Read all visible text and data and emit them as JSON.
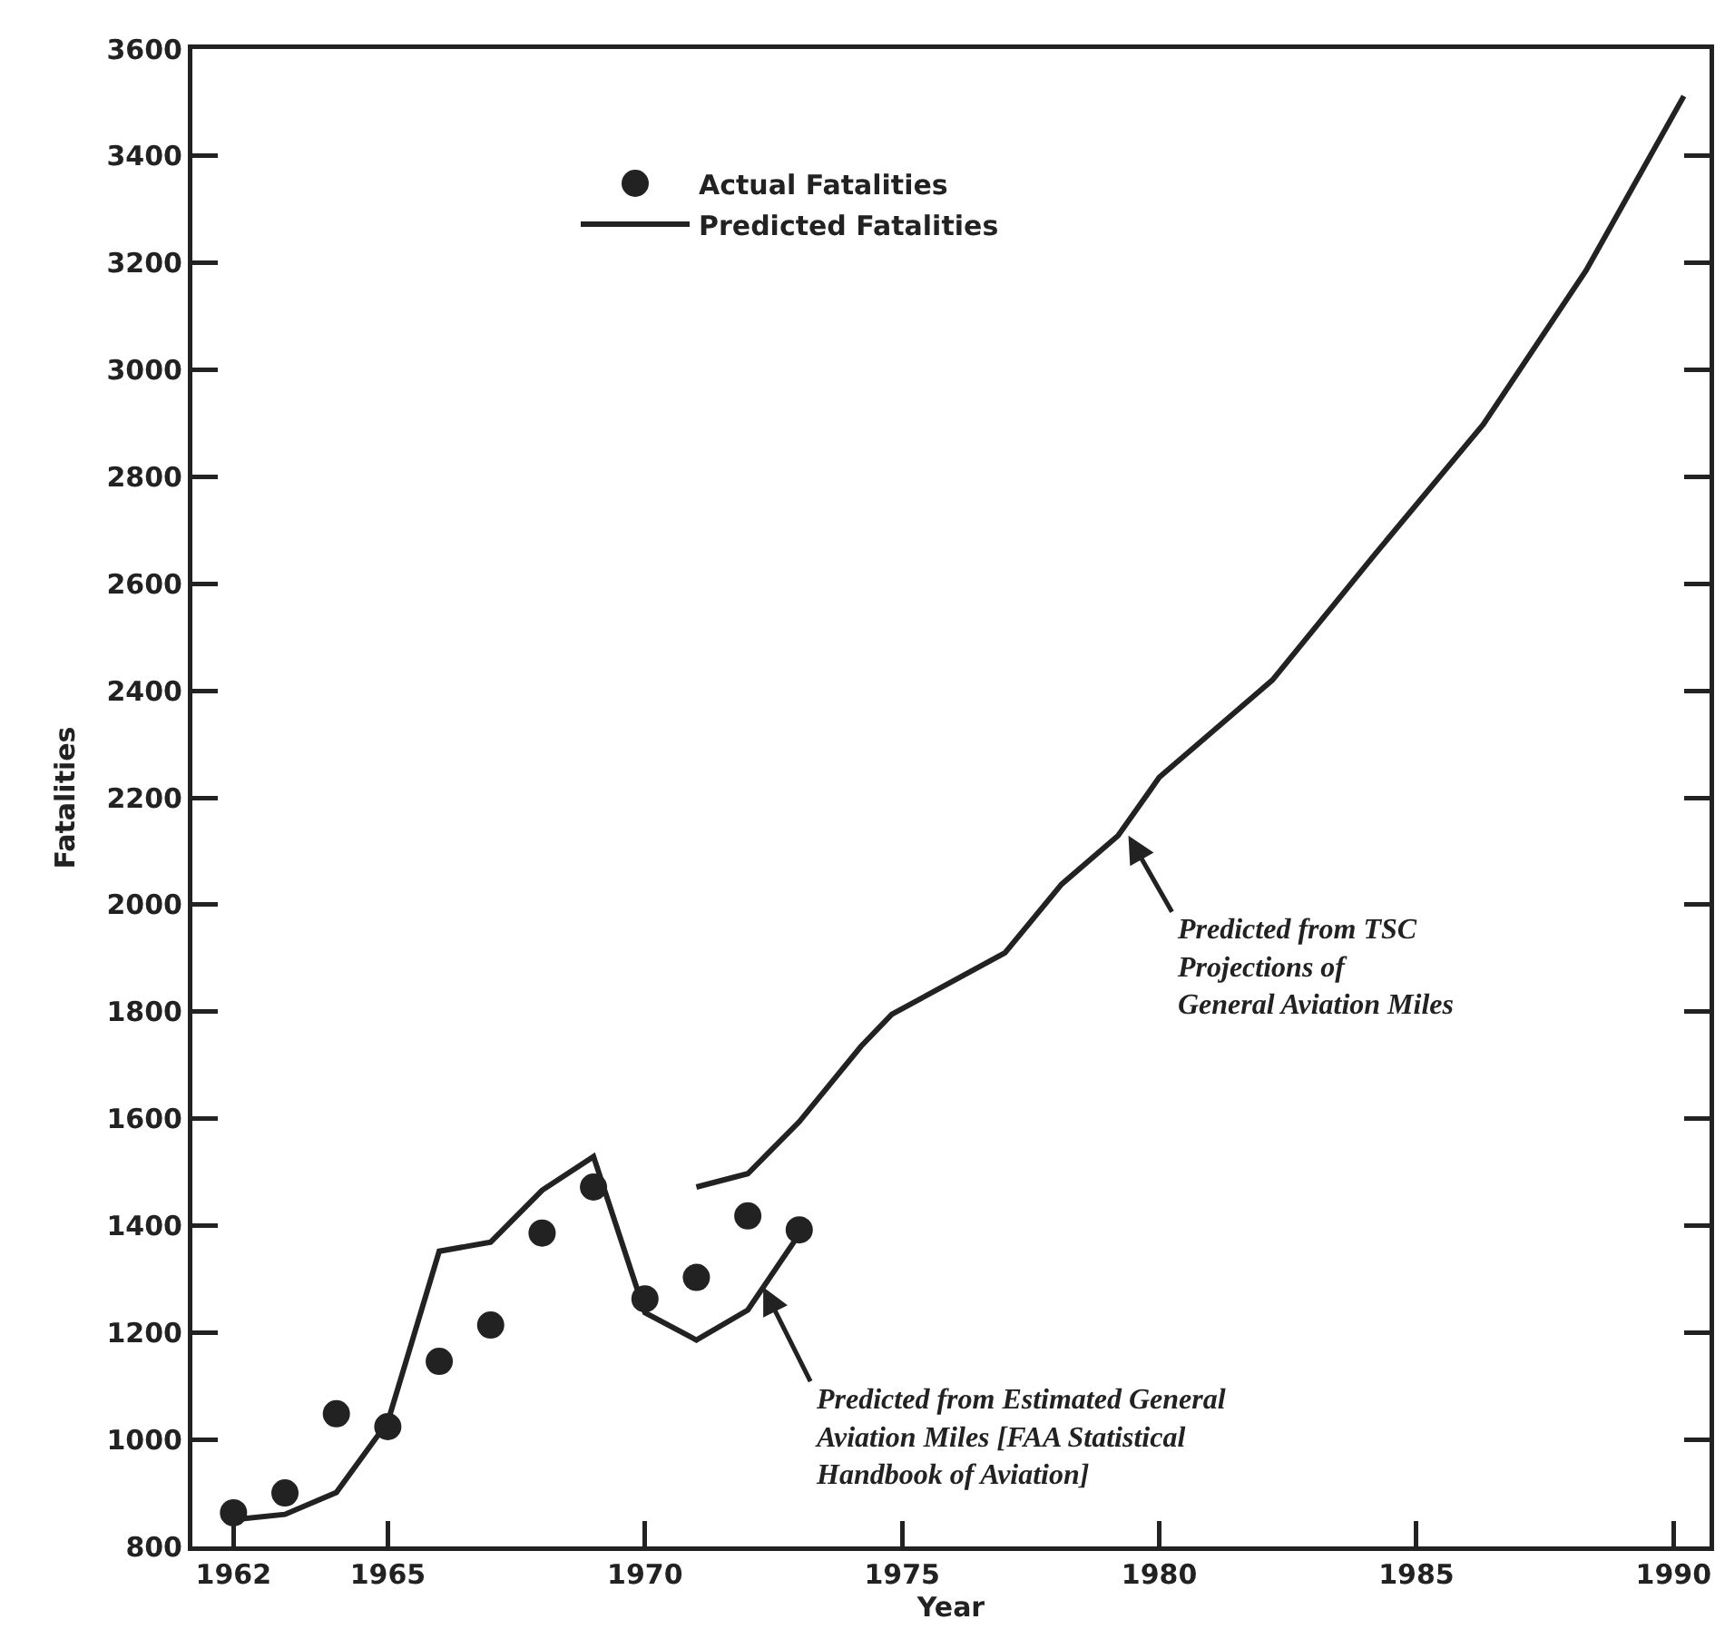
{
  "chart_data": {
    "type": "line",
    "xlabel": "Year",
    "ylabel": "Fatalities",
    "xlim": [
      1961.2,
      1990.7
    ],
    "xticks": [
      1962,
      1965,
      1970,
      1975,
      1980,
      1985,
      1990
    ],
    "ylim": [
      800,
      3600
    ],
    "yticks": [
      800,
      1000,
      1200,
      1400,
      1600,
      1800,
      2000,
      2200,
      2400,
      2600,
      2800,
      3000,
      3200,
      3400,
      3600
    ],
    "grid": false,
    "legend": "top left",
    "series": [
      {
        "name": "Actual Fatalities",
        "type": "scatter",
        "marker": "circle",
        "color": "#222222",
        "x": [
          1962,
          1963,
          1964,
          1965,
          1966,
          1967,
          1968,
          1969,
          1970,
          1971,
          1972,
          1973
        ],
        "values": [
          863,
          900,
          1048,
          1024,
          1146,
          1214,
          1386,
          1472,
          1263,
          1303,
          1418,
          1392
        ]
      },
      {
        "name": "Predicted Fatalities",
        "marker": "none",
        "line_style": "solid",
        "color": "#222222",
        "x": [
          1962,
          1963,
          1964,
          1965,
          1966,
          1967,
          1968,
          1969,
          1970,
          1971,
          1972,
          1973
        ],
        "values": [
          850,
          860,
          901,
          1033,
          1352,
          1369,
          1466,
          1529,
          1237,
          1186,
          1242,
          1384
        ]
      },
      {
        "marker": "none",
        "line_style": "solid",
        "color": "#222222",
        "x": [
          1971,
          1972,
          1973,
          1974.2,
          1974.8,
          1977,
          1978.1,
          1979.2,
          1980,
          1982.2,
          1984.2,
          1986.3,
          1988.3,
          1990.2
        ],
        "values": [
          1472,
          1497,
          1594,
          1735,
          1795,
          1910,
          2038,
          2129,
          2238,
          2420,
          2656,
          2898,
          3186,
          3512
        ]
      }
    ],
    "annotations": [
      {
        "text": "Predicted from TSC\nProjections of\nGeneral Aviation Miles",
        "x": 1979.4,
        "y": 2129
      },
      {
        "text": "Predicted from Estimated General\nAviation Miles [FAA Statistical\nHandbook of Aviation]",
        "x": 1972.3,
        "y": 1285
      }
    ]
  }
}
